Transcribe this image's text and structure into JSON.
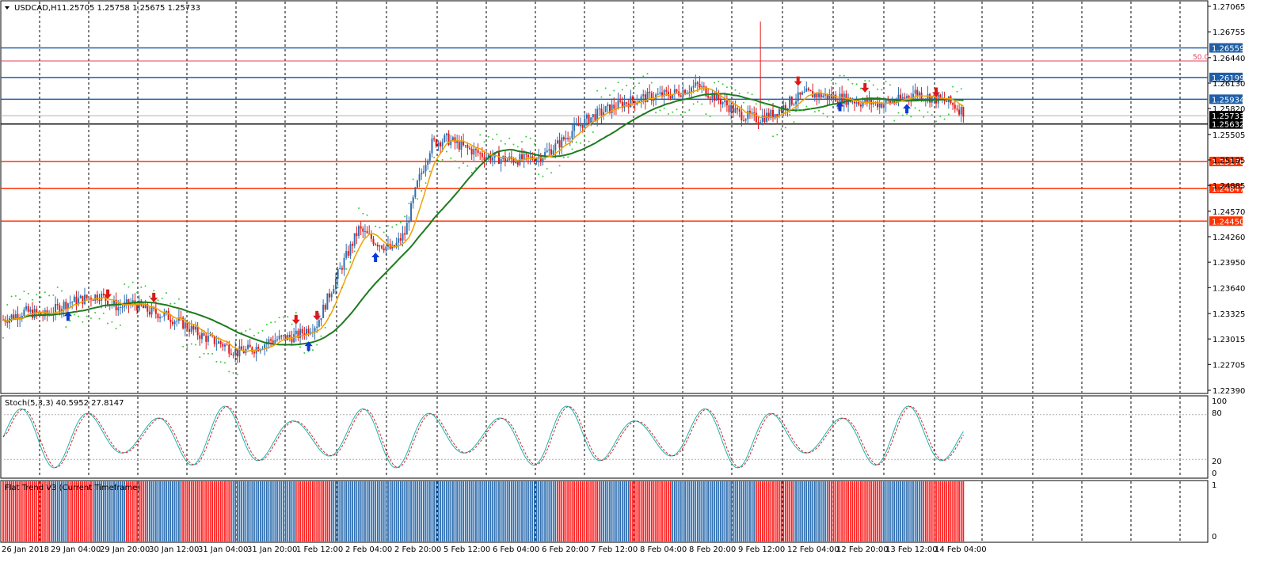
{
  "window": {
    "title": "USDCAD,H1",
    "ohlc": "1.25705 1.25758 1.25675 1.25733"
  },
  "chart_data": {
    "type": "candlestick",
    "symbol": "USDCAD",
    "timeframe": "H1",
    "price_panel": {
      "ylim": [
        1.2239,
        1.27065
      ],
      "y_ticks": [
        "1.27065",
        "1.26755",
        "1.26440",
        "1.26130",
        "1.25820",
        "1.25505",
        "1.25195",
        "1.24885",
        "1.24570",
        "1.24260",
        "1.23950",
        "1.23640",
        "1.23325",
        "1.23015",
        "1.22705",
        "1.22390"
      ],
      "current_price": "1.25733",
      "x_ticks": [
        "26 Jan 2018",
        "29 Jan 04:00",
        "29 Jan 20:00",
        "30 Jan 12:00",
        "31 Jan 04:00",
        "31 Jan 20:00",
        "1 Feb 12:00",
        "2 Feb 04:00",
        "2 Feb 20:00",
        "5 Feb 12:00",
        "6 Feb 04:00",
        "6 Feb 20:00",
        "7 Feb 12:00",
        "8 Feb 04:00",
        "8 Feb 20:00",
        "9 Feb 12:00",
        "12 Feb 04:00",
        "12 Feb 20:00",
        "13 Feb 12:00",
        "14 Feb 04:00"
      ],
      "horizontal_levels": [
        {
          "value": 1.26559,
          "label": "1.26559",
          "color": "#1f5fa8"
        },
        {
          "value": 1.26199,
          "label": "1.26199",
          "color": "#1f5fa8"
        },
        {
          "value": 1.25934,
          "label": "1.25934",
          "color": "#1f5fa8"
        },
        {
          "value": 1.25632,
          "label": "1.25632",
          "color": "#000000"
        },
        {
          "value": 1.25176,
          "label": "1.25176",
          "color": "#ff3300"
        },
        {
          "value": 1.24847,
          "label": "1.24847",
          "color": "#ff3300"
        },
        {
          "value": 1.2445,
          "label": "1.24450",
          "color": "#ff3300"
        }
      ],
      "fib_level": {
        "value": 1.264,
        "label": "50.0",
        "color": "#e04060"
      },
      "path_points": [
        [
          0,
          1.2325
        ],
        [
          10,
          1.2335
        ],
        [
          20,
          1.233
        ],
        [
          30,
          1.2345
        ],
        [
          38,
          1.235
        ],
        [
          46,
          1.2355
        ],
        [
          55,
          1.234
        ],
        [
          62,
          1.2345
        ],
        [
          70,
          1.2335
        ],
        [
          78,
          1.233
        ],
        [
          86,
          1.232
        ],
        [
          95,
          1.2305
        ],
        [
          105,
          1.2295
        ],
        [
          112,
          1.2285
        ],
        [
          120,
          1.229
        ],
        [
          128,
          1.23
        ],
        [
          140,
          1.2305
        ],
        [
          150,
          1.232
        ],
        [
          160,
          1.238
        ],
        [
          170,
          1.2435
        ],
        [
          178,
          1.242
        ],
        [
          186,
          1.241
        ],
        [
          192,
          1.243
        ],
        [
          198,
          1.249
        ],
        [
          205,
          1.254
        ],
        [
          212,
          1.2545
        ],
        [
          220,
          1.2535
        ],
        [
          230,
          1.2525
        ],
        [
          240,
          1.252
        ],
        [
          250,
          1.252
        ],
        [
          258,
          1.2525
        ],
        [
          266,
          1.254
        ],
        [
          272,
          1.2555
        ],
        [
          280,
          1.257
        ],
        [
          288,
          1.258
        ],
        [
          298,
          1.259
        ],
        [
          306,
          1.2595
        ],
        [
          314,
          1.2598
        ],
        [
          320,
          1.26
        ],
        [
          326,
          1.2605
        ],
        [
          332,
          1.261
        ],
        [
          338,
          1.26
        ],
        [
          344,
          1.259
        ],
        [
          352,
          1.2575
        ],
        [
          360,
          1.257
        ],
        [
          368,
          1.2575
        ],
        [
          376,
          1.259
        ],
        [
          384,
          1.26
        ],
        [
          392,
          1.2598
        ],
        [
          400,
          1.2595
        ],
        [
          410,
          1.259
        ],
        [
          420,
          1.2588
        ],
        [
          428,
          1.2592
        ],
        [
          436,
          1.2602
        ],
        [
          444,
          1.2595
        ],
        [
          452,
          1.259
        ],
        [
          458,
          1.258
        ],
        [
          462,
          1.2573
        ]
      ],
      "indicators": [
        "fast MA (orange)",
        "slow MA (green)",
        "Parabolic SAR (green dots)",
        "buy/sell arrows (blue/red)"
      ]
    },
    "stoch_panel": {
      "label": "Stoch(5,3,3) 40.5952 27.8147",
      "ylim": [
        0,
        100
      ],
      "y_ticks": [
        "100",
        "80",
        "20",
        "0"
      ],
      "k_color": "#20b2aa",
      "d_color": "#d0262b"
    },
    "flat_trend_panel": {
      "label": "Flat Trend V3 (Current Timeframe)",
      "ylim": [
        0,
        1
      ],
      "y_ticks": [
        "1",
        "0"
      ],
      "colors": {
        "up": "#2f6fb0",
        "down": "#ff2020",
        "flat": "#ffffff"
      },
      "segments": [
        {
          "from": 0,
          "to": 24,
          "state": "down"
        },
        {
          "from": 24,
          "to": 31,
          "state": "up"
        },
        {
          "from": 31,
          "to": 44,
          "state": "down"
        },
        {
          "from": 44,
          "to": 59,
          "state": "up"
        },
        {
          "from": 59,
          "to": 69,
          "state": "down"
        },
        {
          "from": 69,
          "to": 86,
          "state": "up"
        },
        {
          "from": 86,
          "to": 110,
          "state": "down"
        },
        {
          "from": 110,
          "to": 122,
          "state": "up"
        },
        {
          "from": 122,
          "to": 140,
          "state": "up"
        },
        {
          "from": 140,
          "to": 157,
          "state": "down"
        },
        {
          "from": 157,
          "to": 265,
          "state": "up"
        },
        {
          "from": 265,
          "to": 286,
          "state": "down"
        },
        {
          "from": 286,
          "to": 300,
          "state": "up"
        },
        {
          "from": 300,
          "to": 320,
          "state": "down"
        },
        {
          "from": 320,
          "to": 360,
          "state": "up"
        },
        {
          "from": 360,
          "to": 378,
          "state": "down"
        },
        {
          "from": 378,
          "to": 395,
          "state": "up"
        },
        {
          "from": 395,
          "to": 420,
          "state": "down"
        },
        {
          "from": 420,
          "to": 440,
          "state": "up"
        },
        {
          "from": 440,
          "to": 460,
          "state": "down"
        }
      ]
    }
  }
}
